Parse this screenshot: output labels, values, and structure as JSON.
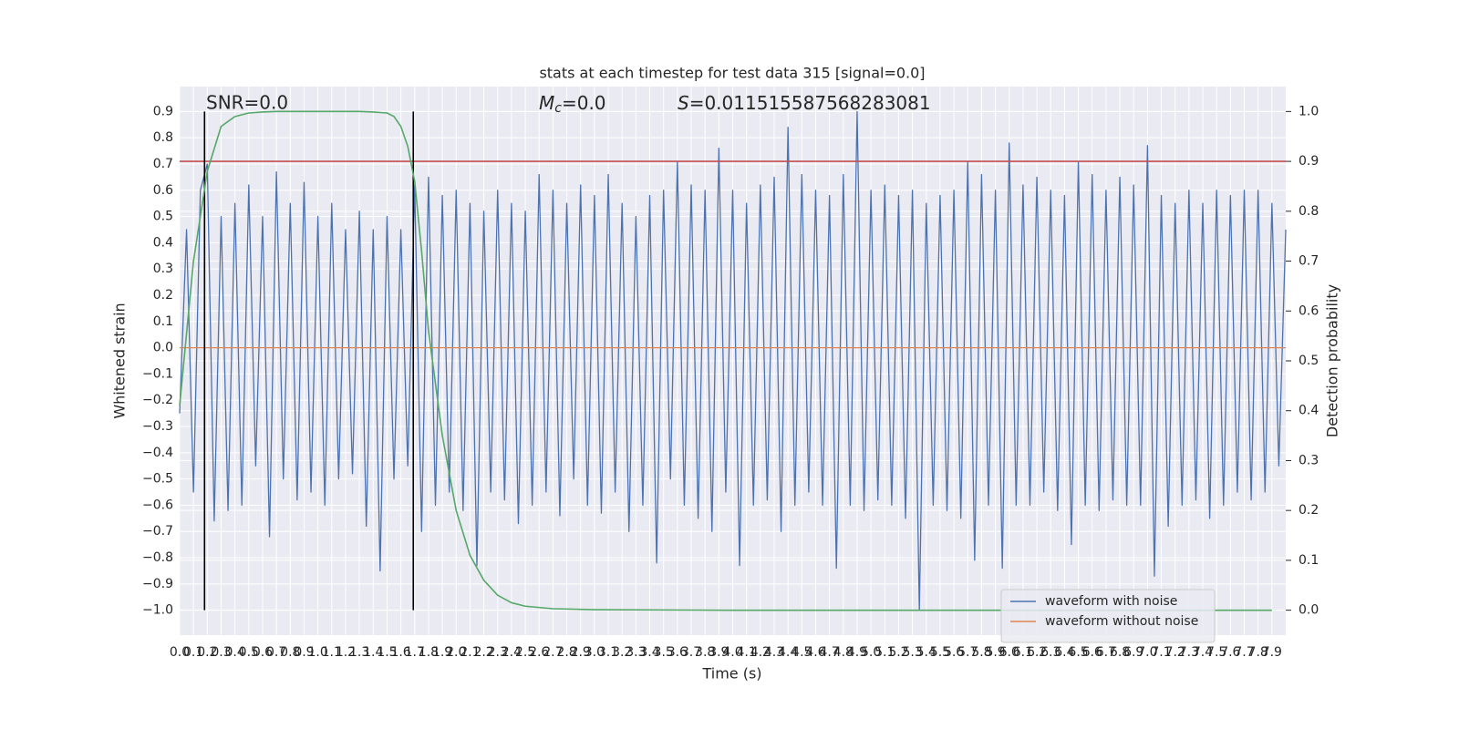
{
  "chart_data": {
    "type": "line",
    "title": "stats at each timestep for test data 315 [signal=0.0]",
    "xlabel": "Time (s)",
    "ylabel": "Whitened strain",
    "y2label": "Detection probability",
    "snr_annotation": "SNR=0.0",
    "mc_annotation": {
      "symbol": "M",
      "subscript": "c",
      "text": "=0.0"
    },
    "s_annotation": {
      "symbol": "S",
      "text": "=0.011515587568283081"
    },
    "grid": true,
    "legend": "lower right",
    "xlim": [
      0,
      8
    ],
    "ylim": [
      -1.095,
      0.995
    ],
    "y2lim": [
      -0.05,
      1.05
    ],
    "xticks": [
      {
        "value": 0,
        "label": "0.0"
      },
      0.1,
      0.2,
      0.3,
      0.4,
      0.5,
      0.6,
      0.7,
      0.8,
      0.9,
      {
        "value": 1,
        "label": "1.0"
      },
      1.1,
      1.2,
      1.3,
      1.4,
      1.5,
      1.6,
      1.7,
      1.8,
      1.9,
      {
        "value": 2,
        "label": "2.0"
      },
      2.1,
      2.2,
      2.3,
      2.4,
      2.5,
      2.6,
      2.7,
      2.8,
      2.9,
      {
        "value": 3,
        "label": "3.0"
      },
      3.1,
      3.2,
      3.3,
      3.4,
      3.5,
      3.6,
      3.7,
      3.8,
      3.9,
      {
        "value": 4,
        "label": "4.0"
      },
      4.1,
      4.2,
      4.3,
      4.4,
      4.5,
      4.6,
      4.7,
      4.8,
      4.9,
      {
        "value": 5,
        "label": "5.0"
      },
      5.1,
      5.2,
      5.3,
      5.4,
      5.5,
      5.6,
      5.7,
      5.8,
      5.9,
      {
        "value": 6,
        "label": "6.0"
      },
      6.1,
      6.2,
      6.3,
      6.4,
      6.5,
      6.6,
      6.7,
      6.8,
      6.9,
      {
        "value": 7,
        "label": "7.0"
      },
      7.1,
      7.2,
      7.3,
      7.4,
      7.5,
      7.6,
      7.7,
      7.8,
      7.9
    ],
    "yticks": [
      {
        "value": -1.0,
        "label": "−1.0"
      },
      {
        "value": -0.9,
        "label": "−0.9"
      },
      {
        "value": -0.8,
        "label": "−0.8"
      },
      {
        "value": -0.7,
        "label": "−0.7"
      },
      {
        "value": -0.6,
        "label": "−0.6"
      },
      {
        "value": -0.5,
        "label": "−0.5"
      },
      {
        "value": -0.4,
        "label": "−0.4"
      },
      {
        "value": -0.3,
        "label": "−0.3"
      },
      {
        "value": -0.2,
        "label": "−0.2"
      },
      {
        "value": -0.1,
        "label": "−0.1"
      },
      {
        "value": 0,
        "label": "0.0"
      },
      0.1,
      0.2,
      0.3,
      0.4,
      0.5,
      0.6,
      0.7,
      0.8,
      0.9
    ],
    "y2ticks": [
      {
        "value": 0,
        "label": "0.0"
      },
      0.1,
      0.2,
      0.3,
      0.4,
      0.5,
      0.6,
      0.7,
      0.8,
      0.9,
      {
        "value": 1,
        "label": "1.0"
      }
    ],
    "series": [
      {
        "name": "waveform with noise",
        "color": "#4c72b0",
        "x": [
          0,
          0.05,
          0.1,
          0.15,
          0.2,
          0.25,
          0.3,
          0.35,
          0.4,
          0.45,
          0.5,
          0.55,
          0.6,
          0.65,
          0.7,
          0.75,
          0.8,
          0.85,
          0.9,
          0.95,
          1,
          1.05,
          1.1,
          1.15,
          1.2,
          1.25,
          1.3,
          1.35,
          1.4,
          1.45,
          1.5,
          1.55,
          1.6,
          1.65,
          1.7,
          1.75,
          1.8,
          1.85,
          1.9,
          1.95,
          2,
          2.05,
          2.1,
          2.15,
          2.2,
          2.25,
          2.3,
          2.35,
          2.4,
          2.45,
          2.5,
          2.55,
          2.6,
          2.65,
          2.7,
          2.75,
          2.8,
          2.85,
          2.9,
          2.95,
          3,
          3.05,
          3.1,
          3.15,
          3.2,
          3.25,
          3.3,
          3.35,
          3.4,
          3.45,
          3.5,
          3.55,
          3.6,
          3.65,
          3.7,
          3.75,
          3.8,
          3.85,
          3.9,
          3.95,
          4,
          4.05,
          4.1,
          4.15,
          4.2,
          4.25,
          4.3,
          4.35,
          4.4,
          4.45,
          4.5,
          4.55,
          4.6,
          4.65,
          4.7,
          4.75,
          4.8,
          4.85,
          4.9,
          4.95,
          5,
          5.05,
          5.1,
          5.15,
          5.2,
          5.25,
          5.3,
          5.35,
          5.4,
          5.45,
          5.5,
          5.55,
          5.6,
          5.65,
          5.7,
          5.75,
          5.8,
          5.85,
          5.9,
          5.95,
          6,
          6.05,
          6.1,
          6.15,
          6.2,
          6.25,
          6.3,
          6.35,
          6.4,
          6.45,
          6.5,
          6.55,
          6.6,
          6.65,
          6.7,
          6.75,
          6.8,
          6.85,
          6.9,
          6.95,
          7,
          7.05,
          7.1,
          7.15,
          7.2,
          7.25,
          7.3,
          7.35,
          7.4,
          7.45,
          7.5,
          7.55,
          7.6,
          7.65,
          7.7,
          7.75,
          7.8,
          7.85,
          7.9,
          7.95,
          8
        ],
        "values": [
          -0.25,
          0.45,
          -0.55,
          0.6,
          0.7,
          -0.66,
          0.5,
          -0.62,
          0.55,
          -0.6,
          0.62,
          -0.45,
          0.5,
          -0.72,
          0.67,
          -0.5,
          0.55,
          -0.58,
          0.63,
          -0.55,
          0.5,
          -0.6,
          0.55,
          -0.5,
          0.45,
          -0.48,
          0.52,
          -0.68,
          0.45,
          -0.85,
          0.5,
          -0.5,
          0.45,
          -0.45,
          0.62,
          -0.7,
          0.65,
          -0.6,
          0.58,
          -0.55,
          0.6,
          -0.62,
          0.55,
          -0.83,
          0.52,
          -0.55,
          0.6,
          -0.58,
          0.55,
          -0.67,
          0.52,
          -0.6,
          0.66,
          -0.55,
          0.6,
          -0.64,
          0.55,
          -0.5,
          0.62,
          -0.6,
          0.58,
          -0.63,
          0.66,
          -0.55,
          0.55,
          -0.7,
          0.5,
          -0.6,
          0.58,
          -0.82,
          0.6,
          -0.5,
          0.71,
          -0.6,
          0.62,
          -0.65,
          0.6,
          -0.7,
          0.76,
          -0.55,
          0.6,
          -0.83,
          0.55,
          -0.6,
          0.62,
          -0.58,
          0.65,
          -0.7,
          0.84,
          -0.6,
          0.66,
          -0.55,
          0.6,
          -0.6,
          0.58,
          -0.84,
          0.66,
          -0.6,
          0.9,
          -0.62,
          0.6,
          -0.58,
          0.62,
          -0.6,
          0.58,
          -0.65,
          0.6,
          -1.0,
          0.55,
          -0.6,
          0.58,
          -0.62,
          0.6,
          -0.65,
          0.71,
          -0.81,
          0.66,
          -0.6,
          0.6,
          -0.84,
          0.78,
          -0.6,
          0.62,
          -0.6,
          0.65,
          -0.55,
          0.6,
          -0.62,
          0.58,
          -0.75,
          0.71,
          -0.6,
          0.66,
          -0.62,
          0.6,
          -0.58,
          0.65,
          -0.6,
          0.62,
          -0.6,
          0.77,
          -0.87,
          0.58,
          -0.68,
          0.55,
          -0.6,
          0.6,
          -0.58,
          0.55,
          -0.65,
          0.6,
          -0.6,
          0.58,
          -0.55,
          0.6,
          -0.58,
          0.6,
          -0.55,
          0.55,
          -0.45,
          0.45
        ]
      },
      {
        "name": "waveform without noise",
        "color": "#dd8452",
        "x": [
          0,
          8
        ],
        "values": [
          0,
          0
        ]
      },
      {
        "color": "#55a868",
        "axis": "y2",
        "x": [
          0,
          0.1,
          0.2,
          0.3,
          0.4,
          0.5,
          0.6,
          0.7,
          0.8,
          0.9,
          1,
          1.1,
          1.2,
          1.3,
          1.4,
          1.5,
          1.55,
          1.6,
          1.65,
          1.7,
          1.75,
          1.8,
          1.9,
          2,
          2.1,
          2.2,
          2.3,
          2.4,
          2.5,
          2.7,
          3,
          4,
          5,
          6,
          7,
          7.9
        ],
        "values": [
          0.41,
          0.7,
          0.88,
          0.97,
          0.99,
          0.997,
          0.999,
          1,
          1,
          1,
          1,
          1,
          1,
          1,
          0.999,
          0.997,
          0.99,
          0.97,
          0.93,
          0.86,
          0.72,
          0.56,
          0.35,
          0.2,
          0.11,
          0.06,
          0.03,
          0.015,
          0.008,
          0.003,
          0.001,
          0,
          0,
          0,
          0,
          0
        ]
      }
    ],
    "hline": {
      "value": 0.9,
      "axis": "y2",
      "color": "#c44e52"
    },
    "vlines": {
      "x": [
        0.18,
        1.69
      ],
      "ymin": -1.0,
      "ymax": 0.9,
      "color": "#000000"
    }
  }
}
